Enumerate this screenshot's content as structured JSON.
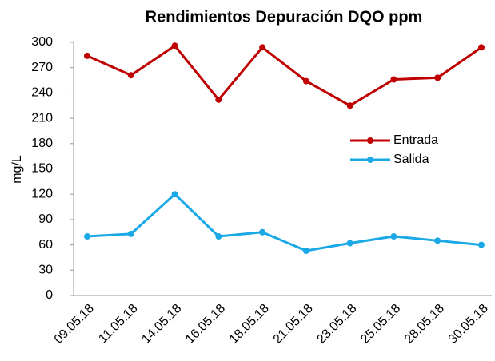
{
  "chart_data": {
    "type": "line",
    "title": "Rendimientos Depuración DQO ppm",
    "y_label": "mg/L",
    "categories": [
      "09.05.18",
      "11.05.18",
      "14.05.18",
      "16.05.18",
      "18.05.18",
      "21.05.18",
      "23.05.18",
      "25.05.18",
      "28.05.18",
      "30.05.18"
    ],
    "series": [
      {
        "name": "Entrada",
        "color": "#c00000",
        "values": [
          284,
          261,
          296,
          232,
          294,
          254,
          225,
          256,
          258,
          294
        ]
      },
      {
        "name": "Salida",
        "color": "#1ba9e6",
        "values": [
          70,
          73,
          120,
          70,
          75,
          53,
          62,
          70,
          65,
          60
        ]
      }
    ],
    "ylim": [
      0,
      300
    ],
    "yticks": [
      0,
      30,
      60,
      90,
      120,
      150,
      180,
      210,
      240,
      270,
      300
    ],
    "legend": "right",
    "grid": false
  }
}
